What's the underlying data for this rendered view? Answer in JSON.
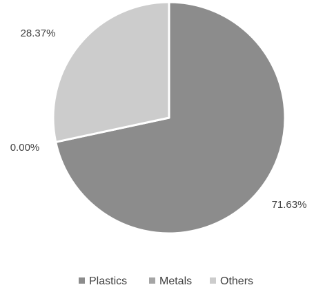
{
  "chart_data": {
    "type": "pie",
    "title": "",
    "slices": [
      {
        "name": "Plastics",
        "value": 71.63,
        "label": "71.63%",
        "color": "#8c8c8c"
      },
      {
        "name": "Metals",
        "value": 0.0,
        "label": "0.00%",
        "color": "#a5a5a5"
      },
      {
        "name": "Others",
        "value": 28.37,
        "label": "28.37%",
        "color": "#cccccc"
      }
    ],
    "start": "12 o'clock",
    "direction": "clockwise",
    "legend": {
      "position": "bottom",
      "entries": [
        "Plastics",
        "Metals",
        "Others"
      ]
    }
  }
}
